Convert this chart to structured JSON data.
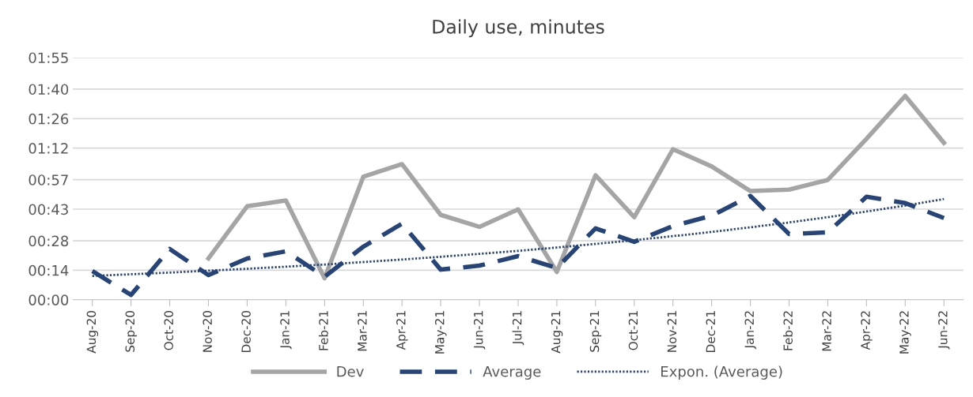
{
  "chart_data": {
    "type": "line",
    "title": "Daily use, minutes",
    "categories": [
      "Aug-20",
      "Sep-20",
      "Oct-20",
      "Nov-20",
      "Dec-20",
      "Jan-21",
      "Feb-21",
      "Mar-21",
      "Apr-21",
      "May-21",
      "Jun-21",
      "Jul-21",
      "Aug-21",
      "Sep-21",
      "Oct-21",
      "Nov-21",
      "Dec-21",
      "Jan-22",
      "Feb-22",
      "Mar-22",
      "Apr-22",
      "May-22",
      "Jun-22"
    ],
    "series": [
      {
        "name": "Dev",
        "color": "#a5a5a5",
        "line_style": "solid",
        "values": [
          null,
          null,
          null,
          19.6,
          44.4,
          47.1,
          10.2,
          58.4,
          64.4,
          40.3,
          34.6,
          42.9,
          13.2,
          59.1,
          39.2,
          71.5,
          63.3,
          51.6,
          52.3,
          56.9,
          76.4,
          96.8,
          74.5
        ]
      },
      {
        "name": "Average",
        "color": "#264478",
        "line_style": "dashed",
        "values": [
          13.6,
          2.3,
          24.1,
          11.7,
          19.6,
          23.0,
          10.9,
          25.2,
          36.1,
          14.3,
          16.2,
          20.7,
          15.1,
          33.9,
          27.5,
          35.0,
          39.9,
          49.3,
          31.2,
          32.0,
          48.9,
          45.9,
          38.8
        ]
      },
      {
        "name": "Expon. (Average)",
        "color": "#264478",
        "line_style": "dotted",
        "values": [
          11.3,
          12.1,
          12.9,
          13.8,
          14.7,
          15.7,
          16.7,
          17.9,
          19.1,
          20.4,
          21.8,
          23.2,
          24.8,
          26.5,
          28.3,
          30.2,
          32.2,
          34.4,
          36.7,
          39.2,
          41.9,
          44.7,
          47.8
        ]
      }
    ],
    "ylim": [
      0,
      115
    ],
    "yticks": [
      {
        "value": 0,
        "label": "00:00"
      },
      {
        "value": 14,
        "label": "00:14"
      },
      {
        "value": 28,
        "label": "00:28"
      },
      {
        "value": 43,
        "label": "00:43"
      },
      {
        "value": 57,
        "label": "00:57"
      },
      {
        "value": 72,
        "label": "01:12"
      },
      {
        "value": 86,
        "label": "01:26"
      },
      {
        "value": 100,
        "label": "01:40"
      },
      {
        "value": 115,
        "label": "01:55"
      }
    ],
    "grid": "y",
    "legend": "bottom",
    "marker": "none"
  }
}
